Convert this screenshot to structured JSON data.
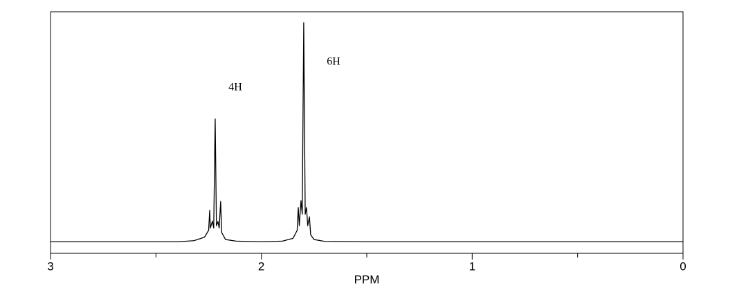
{
  "chart_data": {
    "type": "line",
    "x_label": "PPM",
    "xlim": [
      3,
      0
    ],
    "ylim": [
      -5,
      100
    ],
    "xticks": [
      3,
      2,
      1,
      0
    ],
    "xminorticks": [
      2.5,
      1.5,
      0.5
    ],
    "annotations": [
      "4H",
      "6H"
    ],
    "series": [
      {
        "color": "#000000",
        "x": [
          3.0,
          2.4,
          2.32,
          2.27,
          2.25,
          2.245,
          2.242,
          2.232,
          2.226,
          2.219,
          2.213,
          2.206,
          2.2,
          2.193,
          2.188,
          2.17,
          2.12,
          2.0,
          1.9,
          1.85,
          1.83,
          1.825,
          1.82,
          1.812,
          1.806,
          1.799,
          1.792,
          1.786,
          1.78,
          1.772,
          1.766,
          1.75,
          1.7,
          1.5,
          0.0
        ],
        "values": [
          0,
          0,
          0.5,
          2,
          5,
          13.7,
          6,
          9,
          6,
          53.4,
          7,
          8.8,
          6,
          17.6,
          4,
          1,
          0.3,
          0,
          0.3,
          1.5,
          5,
          14.9,
          7,
          17.9,
          12,
          95.2,
          12,
          14.9,
          7,
          10.9,
          3,
          1,
          0.2,
          0,
          0
        ]
      }
    ]
  }
}
